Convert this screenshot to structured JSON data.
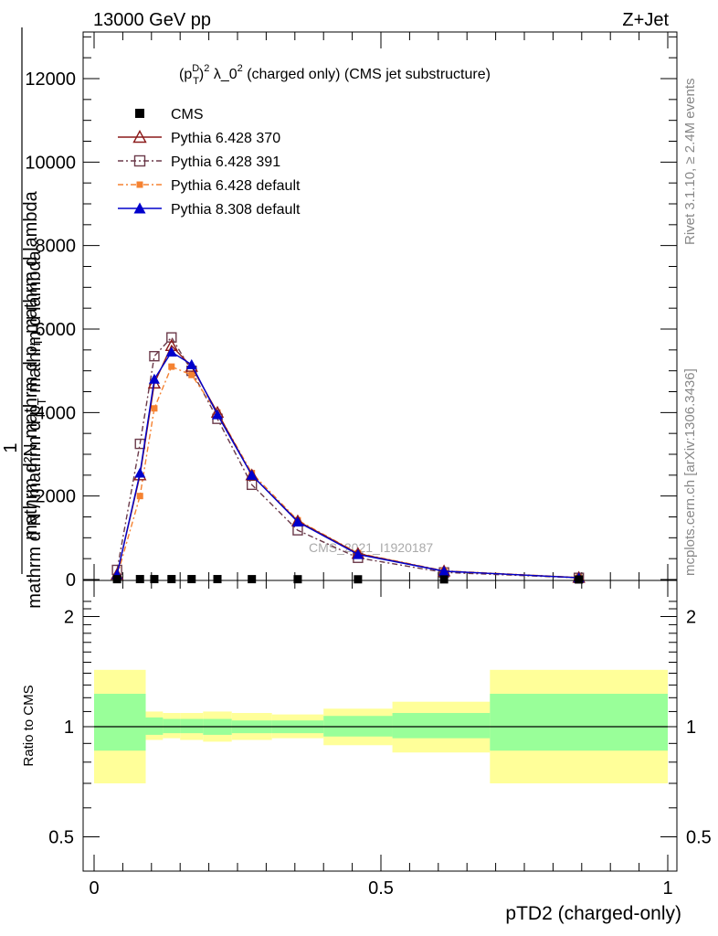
{
  "header": {
    "energy_label": "13000 GeV pp",
    "process_label": "Z+Jet"
  },
  "side_labels": {
    "rivet": "Rivet 3.1.10, ≥ 2.4M events",
    "mcplots": "mcplots.cern.ch [arXiv:1306.3436]"
  },
  "chart_data": [
    {
      "type": "line",
      "panel": "main",
      "title_parts": {
        "p": "(p",
        "sup_D": "D",
        "sub_T": "T",
        "sup_2": "2",
        "rest": " λ_0",
        "sup_2b": "2",
        "tail": " (charged only) (CMS jet substructure)"
      },
      "ylabel": {
        "one": "1",
        "denominator": "mathrm d N / mathrm d p",
        "denominator_sub": "T",
        "denominator_tail": "mathrm d lambda",
        "numerator": "mathrm d",
        "numerator_sup": "2",
        "numerator_tail": "N",
        "denominator_pre": "mathrm d p",
        "denominator_post": " mathrm d lambda"
      },
      "ylabel_text_top": "mathrm d²N",
      "ylabel_text_bottom": "mathrm d N / mathrm d p",
      "ylabel_text_bottom_sub": "T",
      "ylabel_text_bottom_tail": " mathrm d lambda",
      "ylabel_text_top_tail": " mathrm d p",
      "ylabel_text_top_sub": "T",
      "ylabel_text_top_end": " mathrm d lambda",
      "xlim": [
        -0.025,
        1.025
      ],
      "ylim": [
        0,
        13000
      ],
      "yticks": [
        0,
        2000,
        4000,
        6000,
        8000,
        10000,
        12000
      ],
      "ytick_labels": [
        "0",
        "2000",
        "4000",
        "6000",
        "8000",
        "10000",
        "12000"
      ],
      "watermark": "CMS_2021_I1920187",
      "legend_position": "top-left",
      "series": [
        {
          "name": "CMS",
          "color": "#000000",
          "marker": "filled-square",
          "x": [
            0.04,
            0.08,
            0.105,
            0.135,
            0.17,
            0.215,
            0.275,
            0.355,
            0.46,
            0.61,
            0.845
          ],
          "y": [
            8,
            10,
            10,
            10,
            10,
            10,
            9,
            7,
            5,
            3,
            1
          ]
        },
        {
          "name": "Pythia 6.428 370",
          "color": "#8b1a1a",
          "marker": "open-triangle",
          "line": "solid",
          "x": [
            0.04,
            0.08,
            0.105,
            0.135,
            0.17,
            0.215,
            0.275,
            0.355,
            0.46,
            0.61,
            0.845
          ],
          "y": [
            120,
            2500,
            4700,
            5600,
            5100,
            4000,
            2500,
            1400,
            620,
            200,
            45
          ]
        },
        {
          "name": "Pythia 6.428 391",
          "color": "#6b3a4a",
          "marker": "open-square",
          "line": "dash-dot",
          "x": [
            0.04,
            0.08,
            0.105,
            0.135,
            0.17,
            0.215,
            0.275,
            0.355,
            0.46,
            0.61,
            0.845
          ],
          "y": [
            230,
            3250,
            5350,
            5800,
            5000,
            3850,
            2270,
            1180,
            520,
            170,
            40
          ]
        },
        {
          "name": "Pythia 6.428 default",
          "color": "#f58231",
          "marker": "filled-square",
          "line": "dash-dot",
          "x": [
            0.04,
            0.08,
            0.105,
            0.135,
            0.17,
            0.215,
            0.275,
            0.355,
            0.46,
            0.61,
            0.845
          ],
          "y": [
            80,
            2000,
            4100,
            5100,
            4900,
            4000,
            2550,
            1420,
            630,
            210,
            48
          ]
        },
        {
          "name": "Pythia 8.308 default",
          "color": "#0000cc",
          "marker": "filled-triangle",
          "line": "solid",
          "x": [
            0.04,
            0.08,
            0.105,
            0.135,
            0.17,
            0.215,
            0.275,
            0.355,
            0.46,
            0.61,
            0.845
          ],
          "y": [
            120,
            2550,
            4800,
            5450,
            5150,
            3950,
            2500,
            1380,
            600,
            200,
            42
          ]
        }
      ]
    },
    {
      "type": "area",
      "panel": "ratio",
      "ylabel": "Ratio to CMS",
      "xlabel": "pTD2 (charged-only)",
      "xlim": [
        -0.025,
        1.025
      ],
      "ylim": [
        0.35,
        2.3
      ],
      "yticks": [
        0.5,
        1,
        2
      ],
      "ytick_labels": [
        "0.5",
        "1",
        "2"
      ],
      "xticks": [
        0,
        0.5,
        1
      ],
      "xtick_labels": [
        "0",
        "0.5",
        "1"
      ],
      "reference_line": 1,
      "yellow_color": "#ffff99",
      "green_color": "#99ff99",
      "bins": [
        {
          "lo": 0.0,
          "hi": 0.09,
          "yellow": [
            0.7,
            1.43
          ],
          "green": [
            0.86,
            1.23
          ]
        },
        {
          "lo": 0.09,
          "hi": 0.12,
          "yellow": [
            0.92,
            1.1
          ],
          "green": [
            0.95,
            1.06
          ]
        },
        {
          "lo": 0.12,
          "hi": 0.15,
          "yellow": [
            0.93,
            1.09
          ],
          "green": [
            0.96,
            1.05
          ]
        },
        {
          "lo": 0.15,
          "hi": 0.19,
          "yellow": [
            0.92,
            1.09
          ],
          "green": [
            0.96,
            1.05
          ]
        },
        {
          "lo": 0.19,
          "hi": 0.24,
          "yellow": [
            0.91,
            1.1
          ],
          "green": [
            0.95,
            1.05
          ]
        },
        {
          "lo": 0.24,
          "hi": 0.31,
          "yellow": [
            0.92,
            1.09
          ],
          "green": [
            0.96,
            1.04
          ]
        },
        {
          "lo": 0.31,
          "hi": 0.4,
          "yellow": [
            0.93,
            1.08
          ],
          "green": [
            0.96,
            1.04
          ]
        },
        {
          "lo": 0.4,
          "hi": 0.52,
          "yellow": [
            0.89,
            1.12
          ],
          "green": [
            0.94,
            1.07
          ]
        },
        {
          "lo": 0.52,
          "hi": 0.69,
          "yellow": [
            0.85,
            1.17
          ],
          "green": [
            0.93,
            1.09
          ]
        },
        {
          "lo": 0.69,
          "hi": 1.0,
          "yellow": [
            0.7,
            1.43
          ],
          "green": [
            0.86,
            1.23
          ]
        }
      ]
    }
  ]
}
